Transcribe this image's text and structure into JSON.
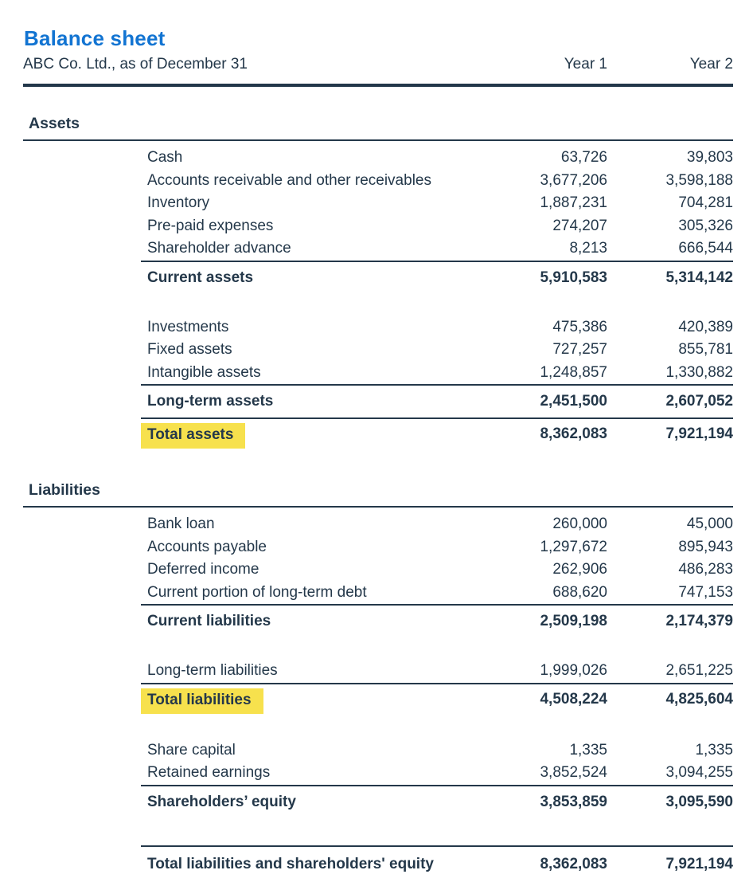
{
  "page": {
    "title": "Balance sheet",
    "subtitle": "ABC Co. Ltd., as of December 31",
    "col_year1": "Year 1",
    "col_year2": "Year 2"
  },
  "colors": {
    "accent_blue": "#1274d2",
    "text": "#24384a",
    "rule": "#22374a",
    "highlight_yellow": "#f7e14d"
  },
  "sections": [
    {
      "name": "Assets",
      "groups": [
        {
          "rows": [
            {
              "label": "Cash",
              "y1": "63,726",
              "y2": "39,803"
            },
            {
              "label": "Accounts receivable and other receivables",
              "y1": "3,677,206",
              "y2": "3,598,188"
            },
            {
              "label": "Inventory",
              "y1": "1,887,231",
              "y2": "704,281"
            },
            {
              "label": "Pre-paid expenses",
              "y1": "274,207",
              "y2": "305,326"
            },
            {
              "label": "Shareholder advance",
              "y1": "8,213",
              "y2": "666,544"
            }
          ],
          "subtotal": {
            "label": "Current assets",
            "y1": "5,910,583",
            "y2": "5,314,142"
          }
        },
        {
          "rows": [
            {
              "label": "Investments",
              "y1": "475,386",
              "y2": "420,389"
            },
            {
              "label": "Fixed assets",
              "y1": "727,257",
              "y2": "855,781"
            },
            {
              "label": "Intangible assets",
              "y1": "1,248,857",
              "y2": "1,330,882"
            }
          ],
          "subtotal": {
            "label": "Long-term assets",
            "y1": "2,451,500",
            "y2": "2,607,052"
          }
        }
      ],
      "total": {
        "label": "Total assets",
        "y1": "8,362,083",
        "y2": "7,921,194",
        "highlighted": true
      }
    },
    {
      "name": "Liabilities",
      "groups": [
        {
          "rows": [
            {
              "label": "Bank loan",
              "y1": "260,000",
              "y2": "45,000"
            },
            {
              "label": "Accounts payable",
              "y1": "1,297,672",
              "y2": "895,943"
            },
            {
              "label": "Deferred income",
              "y1": "262,906",
              "y2": "486,283"
            },
            {
              "label": "Current portion of long-term debt",
              "y1": "688,620",
              "y2": "747,153"
            }
          ],
          "subtotal": {
            "label": "Current liabilities",
            "y1": "2,509,198",
            "y2": "2,174,379"
          }
        },
        {
          "rows": [
            {
              "label": "Long-term liabilities",
              "y1": "1,999,026",
              "y2": "2,651,225"
            }
          ],
          "subtotal": {
            "label": "Total liabilities",
            "y1": "4,508,224",
            "y2": "4,825,604",
            "highlighted": true
          }
        },
        {
          "rows": [
            {
              "label": "Share capital",
              "y1": "1,335",
              "y2": "1,335"
            },
            {
              "label": "Retained earnings",
              "y1": "3,852,524",
              "y2": "3,094,255"
            }
          ],
          "subtotal": {
            "label": "Shareholders’ equity",
            "y1": "3,853,859",
            "y2": "3,095,590"
          }
        }
      ]
    }
  ],
  "grand_total": {
    "label": "Total liabilities and shareholders' equity",
    "y1": "8,362,083",
    "y2": "7,921,194"
  }
}
